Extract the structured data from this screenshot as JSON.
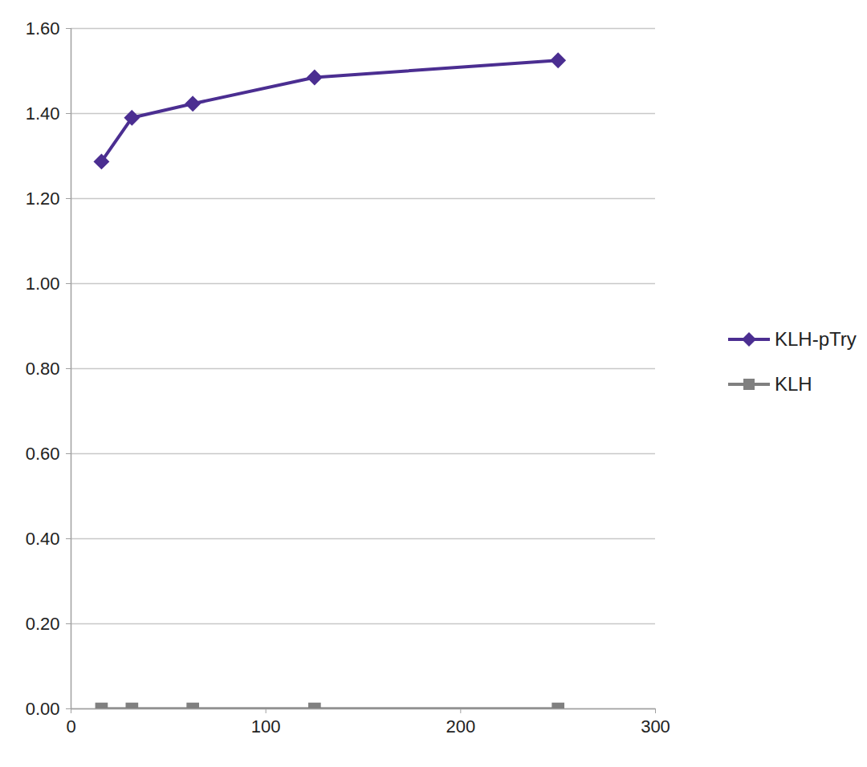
{
  "chart_data": {
    "type": "line",
    "x": [
      15.625,
      31.25,
      62.5,
      125,
      250
    ],
    "series": [
      {
        "name": "KLH-pTry",
        "color": "#4b2e91",
        "marker": "diamond",
        "values": [
          1.287,
          1.39,
          1.423,
          1.485,
          1.525
        ]
      },
      {
        "name": "KLH",
        "color": "#808080",
        "marker": "square",
        "values": [
          0,
          0,
          0,
          0,
          0
        ]
      }
    ],
    "xlim": [
      0,
      300
    ],
    "xticks": [
      0,
      100,
      200,
      300
    ],
    "ylim": [
      0,
      1.6
    ],
    "yticks": [
      0,
      0.2,
      0.4,
      0.6,
      0.8,
      1,
      1.2,
      1.4,
      1.6
    ],
    "grid": true,
    "legend": "right"
  }
}
